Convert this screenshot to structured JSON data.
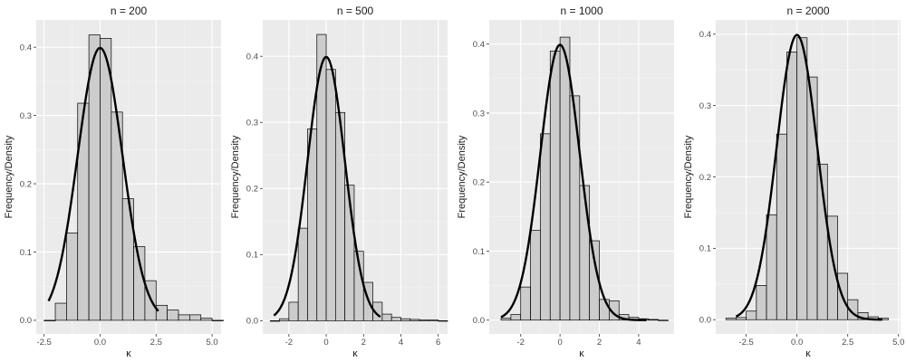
{
  "chart_data": [
    {
      "type": "histogram",
      "title": "n = 200",
      "xlabel": "κ",
      "ylabel": "Frequency/Density",
      "xlim": [
        -2.85,
        5.4
      ],
      "ylim": [
        -0.02,
        0.44
      ],
      "xticks": [
        -2.5,
        0.0,
        2.5,
        5.0
      ],
      "xtick_labels": [
        "-2.5",
        "0.0",
        "2.5",
        "5.0"
      ],
      "yticks": [
        0.0,
        0.1,
        0.2,
        0.3,
        0.4
      ],
      "ytick_labels": [
        "0.0",
        "0.1",
        "0.2",
        "0.3",
        "0.4"
      ],
      "grid": true,
      "bin_width": 0.5,
      "bins": [
        {
          "x0": -2.5,
          "density": 0.0
        },
        {
          "x0": -2.0,
          "density": 0.025
        },
        {
          "x0": -1.5,
          "density": 0.128
        },
        {
          "x0": -1.0,
          "density": 0.318
        },
        {
          "x0": -0.5,
          "density": 0.418
        },
        {
          "x0": 0.0,
          "density": 0.413
        },
        {
          "x0": 0.5,
          "density": 0.305
        },
        {
          "x0": 1.0,
          "density": 0.178
        },
        {
          "x0": 1.5,
          "density": 0.108
        },
        {
          "x0": 2.0,
          "density": 0.058
        },
        {
          "x0": 2.5,
          "density": 0.022
        },
        {
          "x0": 3.0,
          "density": 0.015
        },
        {
          "x0": 3.5,
          "density": 0.008
        },
        {
          "x0": 4.0,
          "density": 0.008
        },
        {
          "x0": 4.5,
          "density": 0.003
        },
        {
          "x0": 5.0,
          "density": 0.0
        }
      ],
      "density_curve": {
        "type": "normal",
        "mean": 0,
        "sd": 1,
        "x_range": [
          -2.3,
          2.6
        ]
      }
    },
    {
      "type": "histogram",
      "title": "n = 500",
      "xlabel": "κ",
      "ylabel": "Frequency/Density",
      "xlim": [
        -3.4,
        6.5
      ],
      "ylim": [
        -0.02,
        0.455
      ],
      "xticks": [
        -2,
        0,
        2,
        4,
        6
      ],
      "xtick_labels": [
        "-2",
        "0",
        "2",
        "4",
        "6"
      ],
      "yticks": [
        0.0,
        0.1,
        0.2,
        0.3,
        0.4
      ],
      "ytick_labels": [
        "0.0",
        "0.1",
        "0.2",
        "0.3",
        "0.4"
      ],
      "grid": true,
      "bin_width": 0.5,
      "bins": [
        {
          "x0": -3.0,
          "density": 0.0
        },
        {
          "x0": -2.5,
          "density": 0.003
        },
        {
          "x0": -2.0,
          "density": 0.028
        },
        {
          "x0": -1.5,
          "density": 0.14
        },
        {
          "x0": -1.0,
          "density": 0.29
        },
        {
          "x0": -0.5,
          "density": 0.433
        },
        {
          "x0": 0.0,
          "density": 0.38
        },
        {
          "x0": 0.5,
          "density": 0.315
        },
        {
          "x0": 1.0,
          "density": 0.205
        },
        {
          "x0": 1.5,
          "density": 0.105
        },
        {
          "x0": 2.0,
          "density": 0.058
        },
        {
          "x0": 2.5,
          "density": 0.028
        },
        {
          "x0": 3.0,
          "density": 0.01
        },
        {
          "x0": 3.5,
          "density": 0.005
        },
        {
          "x0": 4.0,
          "density": 0.003
        },
        {
          "x0": 4.5,
          "density": 0.002
        },
        {
          "x0": 5.0,
          "density": 0.001
        },
        {
          "x0": 5.5,
          "density": 0.001
        },
        {
          "x0": 6.0,
          "density": 0.0
        }
      ],
      "density_curve": {
        "type": "normal",
        "mean": 0,
        "sd": 1,
        "x_range": [
          -2.8,
          2.9
        ]
      }
    },
    {
      "type": "histogram",
      "title": "n = 1000",
      "xlabel": "κ",
      "ylabel": "Frequency/Density",
      "xlim": [
        -3.6,
        5.8
      ],
      "ylim": [
        -0.02,
        0.435
      ],
      "xticks": [
        -2,
        0,
        2,
        4
      ],
      "xtick_labels": [
        "-2",
        "0",
        "2",
        "4"
      ],
      "yticks": [
        0.0,
        0.1,
        0.2,
        0.3,
        0.4
      ],
      "ytick_labels": [
        "0.0",
        "0.1",
        "0.2",
        "0.3",
        "0.4"
      ],
      "grid": true,
      "bin_width": 0.5,
      "bins": [
        {
          "x0": -3.0,
          "density": 0.003
        },
        {
          "x0": -2.5,
          "density": 0.008
        },
        {
          "x0": -2.0,
          "density": 0.048
        },
        {
          "x0": -1.5,
          "density": 0.13
        },
        {
          "x0": -1.0,
          "density": 0.27
        },
        {
          "x0": -0.5,
          "density": 0.39
        },
        {
          "x0": 0.0,
          "density": 0.41
        },
        {
          "x0": 0.5,
          "density": 0.325
        },
        {
          "x0": 1.0,
          "density": 0.195
        },
        {
          "x0": 1.5,
          "density": 0.115
        },
        {
          "x0": 2.0,
          "density": 0.03
        },
        {
          "x0": 2.5,
          "density": 0.028
        },
        {
          "x0": 3.0,
          "density": 0.008
        },
        {
          "x0": 3.5,
          "density": 0.004
        },
        {
          "x0": 4.0,
          "density": 0.002
        },
        {
          "x0": 4.5,
          "density": 0.001
        },
        {
          "x0": 5.0,
          "density": 0.0
        }
      ],
      "density_curve": {
        "type": "normal",
        "mean": 0,
        "sd": 1,
        "x_range": [
          -3.0,
          4.4
        ]
      }
    },
    {
      "type": "histogram",
      "title": "n = 2000",
      "xlabel": "κ",
      "ylabel": "Frequency/Density",
      "xlim": [
        -4.0,
        5.1
      ],
      "ylim": [
        -0.02,
        0.42
      ],
      "xticks": [
        -2.5,
        0.0,
        2.5,
        5.0
      ],
      "xtick_labels": [
        "-2.5",
        "0.0",
        "2.5",
        "5.0"
      ],
      "yticks": [
        0.0,
        0.1,
        0.2,
        0.3,
        0.4
      ],
      "ytick_labels": [
        "0.0",
        "0.1",
        "0.2",
        "0.3",
        "0.4"
      ],
      "grid": true,
      "bin_width": 0.5,
      "bins": [
        {
          "x0": -3.5,
          "density": 0.002
        },
        {
          "x0": -3.0,
          "density": 0.003
        },
        {
          "x0": -2.5,
          "density": 0.012
        },
        {
          "x0": -2.0,
          "density": 0.048
        },
        {
          "x0": -1.5,
          "density": 0.147
        },
        {
          "x0": -1.0,
          "density": 0.26
        },
        {
          "x0": -0.5,
          "density": 0.375
        },
        {
          "x0": 0.0,
          "density": 0.395
        },
        {
          "x0": 0.5,
          "density": 0.34
        },
        {
          "x0": 1.0,
          "density": 0.218
        },
        {
          "x0": 1.5,
          "density": 0.145
        },
        {
          "x0": 2.0,
          "density": 0.065
        },
        {
          "x0": 2.5,
          "density": 0.028
        },
        {
          "x0": 3.0,
          "density": 0.01
        },
        {
          "x0": 3.5,
          "density": 0.004
        },
        {
          "x0": 4.0,
          "density": 0.002
        }
      ],
      "density_curve": {
        "type": "normal",
        "mean": 0,
        "sd": 1,
        "x_range": [
          -3.0,
          4.2
        ]
      }
    }
  ]
}
